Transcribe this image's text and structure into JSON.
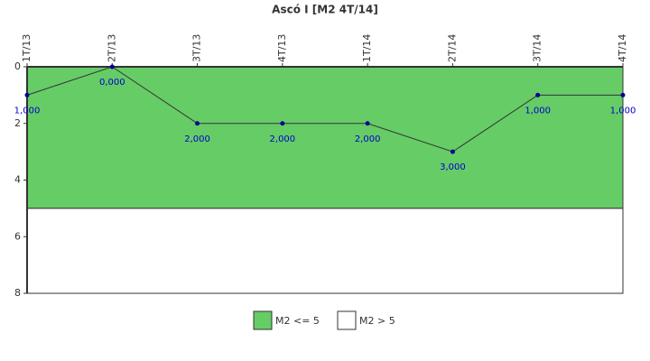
{
  "chart_data": {
    "type": "line",
    "title": "Ascó I [M2 4T/14]",
    "categories": [
      "1T/13",
      "2T/13",
      "3T/13",
      "4T/13",
      "1T/14",
      "2T/14",
      "3T/14",
      "4T/14"
    ],
    "series": [
      {
        "color": "#000099",
        "values": [
          1,
          0,
          2,
          2,
          2,
          3,
          1,
          1
        ],
        "value_labels": [
          "1,000",
          "0,000",
          "2,000",
          "2,000",
          "2,000",
          "3,000",
          "1,000",
          "1,000"
        ]
      }
    ],
    "bands": [
      {
        "name": "M2 <= 5",
        "color": "#66cc66",
        "range": [
          0,
          5
        ]
      },
      {
        "name": "M2 > 5",
        "color": "#ffffff",
        "range": [
          5,
          8
        ]
      }
    ],
    "ylim": [
      0,
      8
    ],
    "y_inverted": true,
    "yticks": [
      0,
      2,
      4,
      6,
      8
    ]
  }
}
